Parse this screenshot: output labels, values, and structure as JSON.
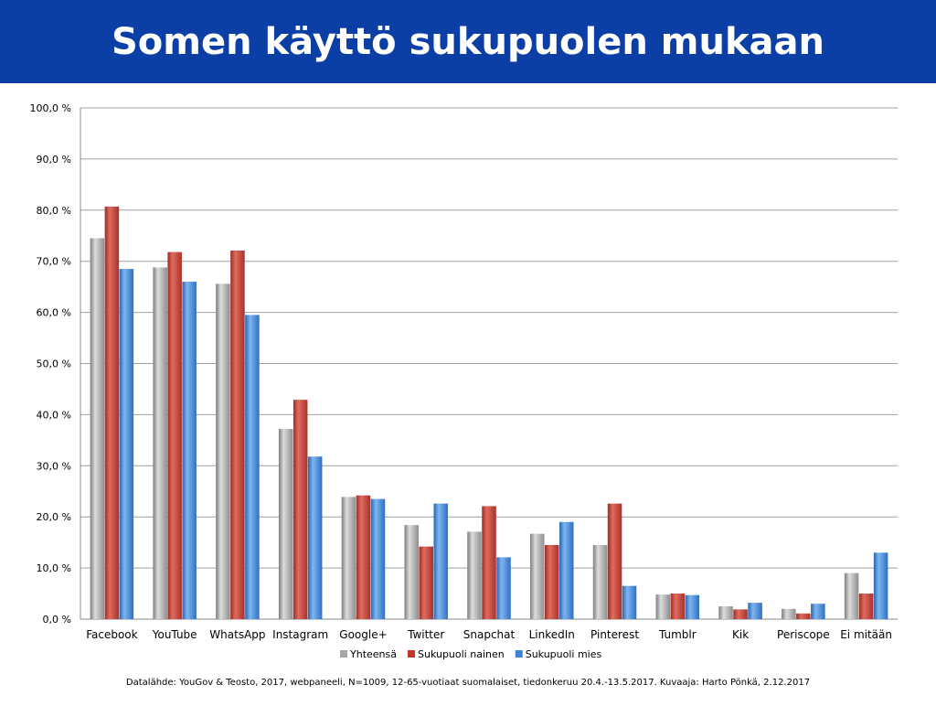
{
  "header": {
    "title": "Somen käyttö sukupuolen mukaan"
  },
  "footer": {
    "source": "Datalähde: YouGov & Teosto, 2017, webpaneeli, N=1009, 12-65-vuotiaat suomalaiset, tiedonkeruu 20.4.-13.5.2017. Kuvaaja: Harto Pönkä, 2.12.2017"
  },
  "chart_data": {
    "type": "bar",
    "title": "Somen käyttö sukupuolen mukaan",
    "xlabel": "",
    "ylabel": "",
    "ylim": [
      0,
      100
    ],
    "y_ticks": [
      "0,0 %",
      "10,0 %",
      "20,0 %",
      "30,0 %",
      "40,0 %",
      "50,0 %",
      "60,0 %",
      "70,0 %",
      "80,0 %",
      "90,0 %",
      "100,0 %"
    ],
    "grid": true,
    "legend_position": "bottom",
    "categories": [
      "Facebook",
      "YouTube",
      "WhatsApp",
      "Instagram",
      "Google+",
      "Twitter",
      "Snapchat",
      "LinkedIn",
      "Pinterest",
      "Tumblr",
      "Kik",
      "Periscope",
      "Ei mitään"
    ],
    "series": [
      {
        "name": "Yhteensä",
        "color": "#a6a6a6",
        "values": [
          74.5,
          68.8,
          65.6,
          37.2,
          23.9,
          18.4,
          17.1,
          16.7,
          14.5,
          4.8,
          2.5,
          2.0,
          9.0
        ]
      },
      {
        "name": "Sukupuoli nainen",
        "color": "#c0392b",
        "values": [
          80.7,
          71.8,
          72.1,
          42.9,
          24.2,
          14.2,
          22.1,
          14.5,
          22.6,
          5.0,
          1.9,
          1.1,
          5.0
        ]
      },
      {
        "name": "Sukupuoli mies",
        "color": "#3d82d4",
        "values": [
          68.5,
          66.0,
          59.5,
          31.8,
          23.5,
          22.6,
          12.1,
          19.0,
          6.5,
          4.7,
          3.2,
          3.0,
          13.0
        ]
      }
    ]
  }
}
